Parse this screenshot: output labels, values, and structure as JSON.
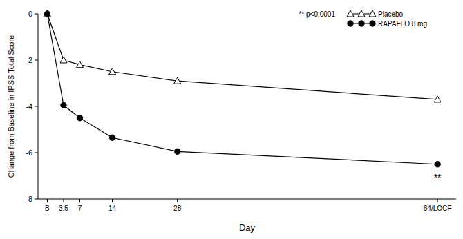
{
  "chart_data": {
    "type": "line",
    "x_label": "Day",
    "y_label": "Change from Baseline in IPSS Total Score",
    "x": [
      0,
      3.5,
      7,
      14,
      28,
      84
    ],
    "xlim": [
      -2,
      88
    ],
    "xticks": [
      {
        "value": 0,
        "label": "B"
      },
      3.5,
      7,
      14,
      28,
      {
        "value": 84,
        "label": "84/LOCF"
      }
    ],
    "ylim": [
      -8,
      0
    ],
    "yticks": [
      0,
      -2,
      -4,
      -6,
      -8
    ],
    "grid": false,
    "legend": "upper right",
    "annotations": [
      "** p<0.0001",
      "**"
    ],
    "series": [
      {
        "name": "Placebo",
        "color": "#000000",
        "marker": "open-triangle",
        "line_style": "solid",
        "values": [
          0,
          -2.0,
          -2.2,
          -2.5,
          -2.9,
          -3.7
        ]
      },
      {
        "name": "RAPAFLO 8 mg",
        "color": "#000000",
        "marker": "circle",
        "line_style": "solid",
        "values": [
          0,
          -3.95,
          -4.5,
          -5.35,
          -5.95,
          -6.5
        ]
      }
    ]
  }
}
